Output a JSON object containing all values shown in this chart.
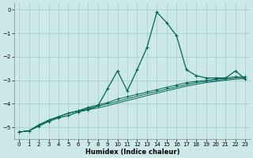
{
  "xlabel": "Humidex (Indice chaleur)",
  "xlim": [
    -0.5,
    23.5
  ],
  "ylim": [
    -5.5,
    0.3
  ],
  "yticks": [
    0,
    -1,
    -2,
    -3,
    -4,
    -5
  ],
  "xticks": [
    0,
    1,
    2,
    3,
    4,
    5,
    6,
    7,
    8,
    9,
    10,
    11,
    12,
    13,
    14,
    15,
    16,
    17,
    18,
    19,
    20,
    21,
    22,
    23
  ],
  "bg_color": "#cce8e8",
  "grid_color": "#aacfcf",
  "line_color": "#006655",
  "x": [
    0,
    1,
    2,
    3,
    4,
    5,
    6,
    7,
    8,
    9,
    10,
    11,
    12,
    13,
    14,
    15,
    16,
    17,
    18,
    19,
    20,
    21,
    22,
    23
  ],
  "curve_peak_y": [
    -5.2,
    -5.15,
    -4.95,
    -4.75,
    -4.6,
    -4.5,
    -4.35,
    -4.25,
    -4.1,
    -3.35,
    -2.6,
    -3.45,
    -2.55,
    -1.6,
    -0.1,
    -0.55,
    -1.1,
    -2.55,
    -2.8,
    -2.9,
    -2.9,
    -2.9,
    -2.6,
    -2.95
  ],
  "curve_lin1_y": [
    -5.2,
    -5.15,
    -4.9,
    -4.7,
    -4.55,
    -4.4,
    -4.3,
    -4.15,
    -4.05,
    -3.95,
    -3.8,
    -3.7,
    -3.6,
    -3.5,
    -3.4,
    -3.3,
    -3.2,
    -3.1,
    -3.05,
    -3.0,
    -2.95,
    -2.9,
    -2.85,
    -2.85
  ],
  "curve_lin2_y": [
    -5.2,
    -5.15,
    -4.9,
    -4.7,
    -4.55,
    -4.4,
    -4.3,
    -4.2,
    -4.1,
    -4.0,
    -3.9,
    -3.78,
    -3.68,
    -3.57,
    -3.48,
    -3.38,
    -3.28,
    -3.18,
    -3.1,
    -3.05,
    -3.0,
    -2.95,
    -2.9,
    -2.88
  ],
  "curve_lin3_y": [
    -5.2,
    -5.15,
    -4.9,
    -4.7,
    -4.55,
    -4.4,
    -4.3,
    -4.25,
    -4.18,
    -4.08,
    -3.97,
    -3.86,
    -3.76,
    -3.65,
    -3.55,
    -3.45,
    -3.35,
    -3.25,
    -3.17,
    -3.1,
    -3.05,
    -3.0,
    -2.95,
    -2.93
  ]
}
